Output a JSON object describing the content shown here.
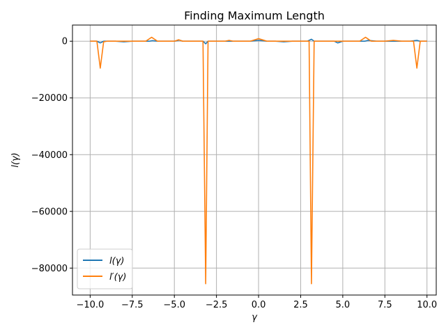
{
  "chart_data": {
    "type": "line",
    "title": "Finding Maximum Length",
    "xlabel": "γ",
    "ylabel": "l(γ)",
    "xlim": [
      -11.05,
      10.55
    ],
    "ylim": [
      -89500,
      5700
    ],
    "grid": true,
    "legend_position": "lower-left",
    "xticks": [
      -10.0,
      -7.5,
      -5.0,
      -2.5,
      0.0,
      2.5,
      5.0,
      7.5,
      10.0
    ],
    "xtick_labels": [
      "−10.0",
      "−7.5",
      "−5.0",
      "−2.5",
      "0.0",
      "2.5",
      "5.0",
      "7.5",
      "10.0"
    ],
    "yticks": [
      0,
      -20000,
      -40000,
      -60000,
      -80000
    ],
    "ytick_labels": [
      "0",
      "−20000",
      "−40000",
      "−60000",
      "−80000"
    ],
    "series": [
      {
        "name": "l(γ)",
        "color": "#1f77b4",
        "x": [
          -10.0,
          -9.8,
          -9.6,
          -9.4,
          -9.2,
          -9.0,
          -8.5,
          -8.0,
          -7.5,
          -7.0,
          -6.5,
          -6.3,
          -6.0,
          -5.5,
          -5.0,
          -4.7,
          -4.5,
          -4.0,
          -3.5,
          -3.3,
          -3.14,
          -3.0,
          -2.5,
          -2.0,
          -1.5,
          -1.0,
          -0.5,
          0.0,
          0.5,
          1.0,
          1.5,
          2.0,
          2.5,
          2.9,
          3.14,
          3.3,
          3.5,
          4.0,
          4.5,
          4.7,
          5.0,
          5.5,
          6.0,
          6.3,
          6.5,
          7.0,
          7.5,
          8.0,
          8.5,
          9.0,
          9.4,
          9.6,
          9.8,
          10.0
        ],
        "values": [
          0,
          0,
          0,
          -600,
          0,
          0,
          0,
          -200,
          0,
          0,
          0,
          200,
          0,
          0,
          0,
          400,
          0,
          0,
          0,
          0,
          -900,
          0,
          0,
          0,
          0,
          0,
          0,
          300,
          0,
          0,
          -200,
          0,
          0,
          0,
          700,
          0,
          0,
          0,
          0,
          -600,
          0,
          0,
          0,
          0,
          300,
          0,
          0,
          0,
          0,
          0,
          300,
          0,
          0,
          0
        ]
      },
      {
        "name": "l′(γ)",
        "color": "#ff7f0e",
        "x": [
          -10.0,
          -9.6,
          -9.4,
          -9.2,
          -9.0,
          -8.5,
          -8.0,
          -7.5,
          -7.0,
          -6.7,
          -6.35,
          -6.0,
          -5.5,
          -5.0,
          -4.75,
          -4.5,
          -4.0,
          -3.5,
          -3.3,
          -3.14,
          -3.0,
          -2.5,
          -2.0,
          -1.75,
          -1.5,
          -1.0,
          -0.5,
          0.0,
          0.5,
          1.0,
          1.5,
          2.0,
          2.5,
          3.0,
          3.14,
          3.3,
          3.5,
          4.0,
          4.5,
          4.75,
          5.0,
          5.5,
          6.0,
          6.35,
          6.7,
          7.0,
          7.5,
          8.0,
          8.5,
          9.0,
          9.2,
          9.4,
          9.6,
          10.0
        ],
        "values": [
          0,
          0,
          -9500,
          -200,
          0,
          0,
          0,
          0,
          0,
          0,
          1400,
          0,
          0,
          0,
          500,
          0,
          0,
          0,
          0,
          -85500,
          0,
          0,
          0,
          300,
          0,
          0,
          0,
          900,
          0,
          0,
          0,
          0,
          0,
          0,
          -85500,
          0,
          0,
          0,
          0,
          0,
          0,
          0,
          0,
          1400,
          0,
          0,
          0,
          300,
          0,
          0,
          0,
          -9500,
          0,
          0
        ]
      }
    ]
  }
}
